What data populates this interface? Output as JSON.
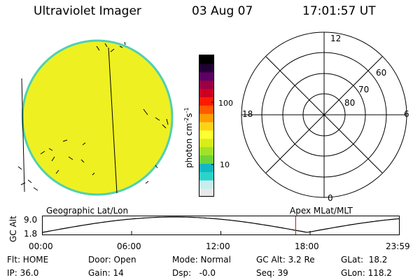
{
  "header": {
    "title": "Ultraviolet Imager",
    "date": "03 Aug 07",
    "time": "17:01:57 UT"
  },
  "colorbar": {
    "label": "photon cm",
    "label_sup1": "-2",
    "label_s": "s",
    "label_sup2": "-1",
    "ticks": [
      "100",
      "10"
    ],
    "colors": [
      "#e8e8e8",
      "#c6eeee",
      "#2bd3c8",
      "#12b8c2",
      "#6fd43a",
      "#9fe229",
      "#d8ee1a",
      "#ffff33",
      "#ffd21a",
      "#ff9c00",
      "#ff5a00",
      "#ff1a00",
      "#cc0022",
      "#9a0044",
      "#5c0066",
      "#220033",
      "#000000"
    ]
  },
  "polar": {
    "mlt_labels": {
      "top": "12",
      "left": "18",
      "right": "6",
      "bottom": "0"
    },
    "lat_labels": [
      "60",
      "70",
      "80"
    ]
  },
  "timeline": {
    "left_title": "Geographic Lat/Lon",
    "right_title": "Apex MLat/MLT",
    "axis_title": "GC Alt",
    "y_top": "9.0",
    "y_bottom": "1.8",
    "x_ticks": [
      "00:00",
      "06:00",
      "12:00",
      "18:00",
      "23:59"
    ],
    "marker_hour": 17.03,
    "curve_color": "#000000",
    "marker_color": "#d03030"
  },
  "status": {
    "row1": {
      "flt": "Flt: HOME",
      "door": "Door: Open",
      "mode": "Mode: Normal",
      "gcalt": "GC Alt: 3.2 Re",
      "glat": "GLat:  18.2"
    },
    "row2": {
      "ip": "IP: 36.0",
      "gain": "Gain: 14",
      "dsp": "Dsp:   -0.0",
      "seq": "Seq: 39",
      "glon": "GLon: 118.2"
    }
  },
  "image": {
    "fill_color": "#eef022",
    "edge_color": "#4fd0b0"
  }
}
